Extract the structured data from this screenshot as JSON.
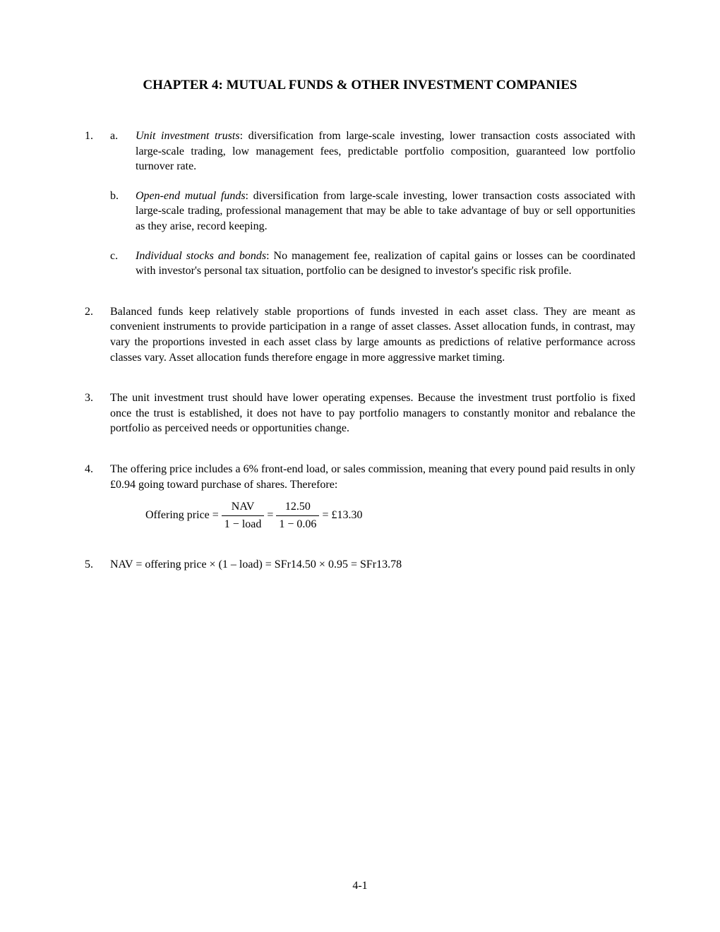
{
  "title": "CHAPTER 4: MUTUAL FUNDS & OTHER INVESTMENT COMPANIES",
  "q1": {
    "num": "1.",
    "a": {
      "label": "a.",
      "term": "Unit investment trusts",
      "text": ": diversification from large-scale investing, lower transaction costs associated with large-scale trading, low management fees, predictable portfolio composition, guaranteed low portfolio turnover rate."
    },
    "b": {
      "label": "b.",
      "term": "Open-end mutual funds",
      "text": ": diversification from large-scale investing, lower transaction costs associated with large-scale trading, professional management that may be able to take advantage of buy or sell opportunities as they arise, record keeping."
    },
    "c": {
      "label": "c.",
      "term": "Individual stocks and bonds",
      "text": ": No management fee, realization of capital gains or losses can be coordinated with investor's personal tax situation, portfolio can be designed to investor's specific risk profile."
    }
  },
  "q2": {
    "num": "2.",
    "text": "Balanced funds keep relatively stable proportions of funds invested in each asset class.  They are meant as convenient instruments to provide participation in a range of asset classes.  Asset allocation funds, in contrast, may vary the proportions invested in each asset class by large amounts as predictions of relative performance across classes vary.  Asset allocation funds therefore engage in more aggressive market timing."
  },
  "q3": {
    "num": "3.",
    "text": "The unit investment trust should have lower operating expenses.  Because the investment trust portfolio is fixed once the trust is established, it does not have to pay portfolio managers to constantly monitor and rebalance the portfolio as perceived needs or opportunities change."
  },
  "q4": {
    "num": "4.",
    "text": "The offering price includes a 6% front-end load, or sales commission, meaning that every pound paid results in only £0.94 going toward purchase of shares.  Therefore:",
    "formula": {
      "lead": "Offering price = ",
      "frac1_num": "NAV",
      "frac1_den": "1 − load",
      "eq1": " = ",
      "frac2_num": "12.50",
      "frac2_den": "1 − 0.06",
      "result": " = £13.30"
    }
  },
  "q5": {
    "num": "5.",
    "text": "NAV = offering price × (1 – load) = SFr14.50 × 0.95 = SFr13.78"
  },
  "pagenum": "4-1"
}
